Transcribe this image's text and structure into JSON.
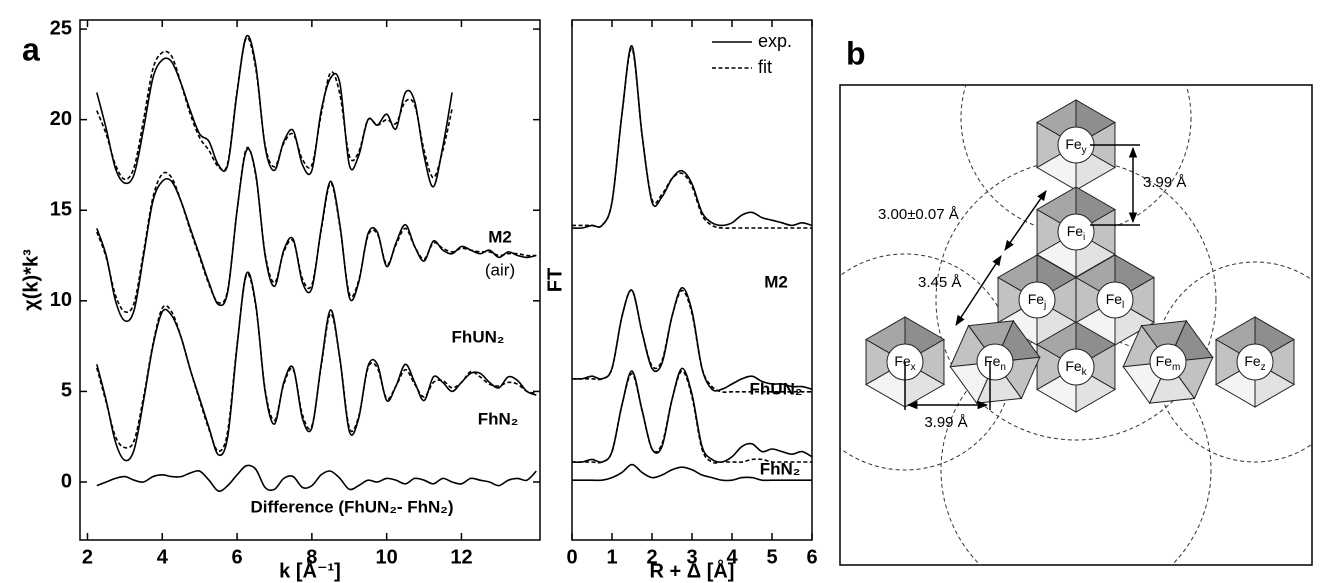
{
  "chart_data": [
    {
      "type": "line",
      "label": "a",
      "x_label": "k [Å⁻¹]",
      "y_label": "χ(k)*k³",
      "xlim": [
        1.8,
        14.1
      ],
      "xticks": [
        2,
        4,
        6,
        8,
        10,
        12
      ],
      "ylim": [
        -3.2,
        25.5
      ],
      "yticks": [
        0,
        5,
        10,
        15,
        20,
        25
      ],
      "annotations": [
        "M2",
        "(air)",
        "FhUN₂",
        "FhN₂",
        "Difference (FhUN₂- FhN₂)"
      ],
      "x": [
        2.25,
        2.5,
        2.75,
        3.0,
        3.25,
        3.5,
        3.75,
        4.0,
        4.25,
        4.5,
        4.75,
        5.0,
        5.25,
        5.5,
        5.75,
        6.0,
        6.25,
        6.5,
        6.75,
        7.0,
        7.25,
        7.5,
        7.75,
        8.0,
        8.25,
        8.5,
        8.75,
        9.0,
        9.25,
        9.5,
        9.75,
        10.0,
        10.25,
        10.5,
        10.75,
        11.0,
        11.25,
        11.5,
        11.75,
        12.0,
        12.25,
        12.5,
        12.75,
        13.0,
        13.25,
        13.5,
        13.75,
        14.0
      ],
      "series": [
        {
          "color": "#000000",
          "style": "solid",
          "values": [
            21.5,
            19.5,
            17.3,
            16.5,
            17.0,
            19.5,
            22.3,
            23.3,
            23.2,
            22.0,
            20.5,
            19.2,
            18.8,
            17.5,
            17.5,
            21.5,
            24.6,
            23.0,
            18.5,
            17.2,
            18.8,
            19.4,
            17.5,
            17.2,
            20.5,
            22.3,
            22.0,
            17.5,
            18.0,
            20.0,
            19.7,
            20.3,
            19.5,
            21.5,
            21.0,
            18.0,
            16.3,
            18.5,
            21.5,
            null,
            null,
            null,
            null,
            null,
            null,
            null,
            null,
            null
          ]
        },
        {
          "color": "#000000",
          "style": "dashed",
          "values": [
            20.5,
            19.2,
            17.5,
            16.7,
            17.4,
            20.0,
            22.8,
            23.7,
            23.5,
            22.0,
            20.3,
            19.0,
            18.3,
            17.4,
            17.6,
            21.6,
            24.5,
            22.8,
            18.6,
            17.4,
            18.7,
            19.2,
            17.8,
            17.5,
            20.3,
            22.6,
            21.4,
            18.0,
            18.2,
            20.0,
            19.7,
            20.0,
            19.8,
            21.0,
            20.8,
            18.3,
            16.8,
            18.3,
            20.6,
            null,
            null,
            null,
            null,
            null,
            null,
            null,
            null,
            null
          ]
        },
        {
          "color": "#000000",
          "style": "solid",
          "values": [
            14.0,
            12.5,
            10.0,
            8.9,
            9.5,
            12.5,
            15.5,
            16.6,
            16.6,
            15.5,
            14.0,
            12.5,
            11.0,
            9.8,
            10.5,
            15.0,
            18.3,
            17.0,
            12.5,
            10.8,
            12.8,
            13.4,
            11.0,
            10.7,
            14.0,
            16.6,
            14.2,
            10.2,
            11.0,
            13.7,
            13.8,
            11.9,
            13.2,
            14.2,
            13.0,
            12.2,
            13.3,
            12.8,
            12.6,
            13.0,
            12.8,
            12.6,
            12.8,
            12.4,
            12.7,
            12.5,
            12.4,
            12.5
          ]
        },
        {
          "color": "#000000",
          "style": "dashed",
          "values": [
            13.8,
            12.4,
            10.3,
            9.4,
            9.9,
            12.7,
            15.7,
            17.0,
            16.8,
            15.5,
            13.9,
            12.4,
            10.9,
            9.9,
            10.6,
            15.0,
            18.4,
            16.9,
            12.6,
            11.0,
            12.7,
            13.3,
            11.2,
            10.9,
            13.9,
            16.5,
            14.1,
            10.4,
            11.1,
            13.6,
            13.7,
            12.0,
            13.1,
            14.0,
            13.0,
            12.3,
            13.2,
            12.9,
            12.7,
            12.9,
            12.8,
            12.7,
            12.7,
            12.5,
            12.6,
            12.6,
            12.5,
            12.5
          ]
        },
        {
          "color": "#000000",
          "style": "solid",
          "values": [
            6.5,
            4.5,
            2.2,
            1.2,
            1.8,
            4.5,
            7.5,
            9.4,
            9.2,
            8.0,
            6.2,
            4.6,
            3.0,
            1.5,
            2.5,
            7.5,
            11.5,
            9.8,
            5.0,
            3.2,
            5.5,
            6.3,
            3.5,
            3.0,
            6.5,
            9.5,
            6.8,
            2.8,
            3.5,
            6.4,
            6.5,
            4.5,
            5.3,
            6.5,
            5.5,
            4.5,
            5.8,
            5.5,
            5.0,
            5.5,
            6.0,
            6.0,
            5.5,
            5.2,
            5.8,
            5.6,
            5.0,
            4.8
          ]
        },
        {
          "color": "#000000",
          "style": "dashed",
          "values": [
            6.3,
            4.4,
            2.5,
            1.9,
            2.3,
            4.7,
            7.6,
            9.6,
            9.4,
            8.0,
            6.2,
            4.5,
            2.9,
            1.7,
            2.8,
            7.6,
            11.4,
            9.7,
            5.1,
            3.4,
            5.4,
            6.2,
            3.7,
            3.1,
            6.4,
            9.3,
            6.8,
            3.0,
            3.6,
            6.3,
            6.3,
            4.6,
            5.3,
            6.2,
            5.4,
            4.7,
            5.5,
            5.6,
            5.2,
            5.5,
            6.1,
            5.8,
            5.4,
            5.3,
            5.5,
            5.4,
            5.0,
            4.9
          ]
        },
        {
          "color": "#000000",
          "style": "solid",
          "values": [
            -0.2,
            0.0,
            0.2,
            0.3,
            0.1,
            0.0,
            0.3,
            0.4,
            0.3,
            0.3,
            0.5,
            0.6,
            0.1,
            -0.5,
            -0.2,
            0.4,
            0.9,
            0.7,
            -0.3,
            -0.4,
            0.2,
            0.3,
            -0.3,
            -0.2,
            0.4,
            0.6,
            0.2,
            -0.4,
            -0.2,
            0.1,
            0.0,
            0.2,
            0.1,
            -0.1,
            0.2,
            0.1,
            -0.1,
            0.2,
            0.0,
            -0.1,
            0.2,
            0.1,
            0.0,
            -0.2,
            0.1,
            0.2,
            0.1,
            0.6
          ]
        }
      ]
    },
    {
      "type": "line",
      "x_label": "R + Δ [Å]",
      "y_label": "FT",
      "xlim": [
        0,
        6
      ],
      "xticks": [
        0,
        1,
        2,
        3,
        4,
        5,
        6
      ],
      "ylim": [
        0,
        10
      ],
      "annotations": [
        "M2",
        "FhUN₂",
        "FhN₂"
      ],
      "x": [
        0,
        0.25,
        0.5,
        0.75,
        1.0,
        1.25,
        1.5,
        1.75,
        2.0,
        2.25,
        2.5,
        2.75,
        3.0,
        3.25,
        3.5,
        3.75,
        4.0,
        4.25,
        4.5,
        4.75,
        5.0,
        5.25,
        5.5,
        5.75,
        6.0
      ],
      "series": [
        {
          "name": "exp.",
          "color": "#000000",
          "style": "solid",
          "values": [
            6.0,
            6.0,
            6.05,
            6.05,
            6.5,
            8.2,
            9.5,
            7.8,
            6.5,
            6.6,
            6.95,
            7.1,
            6.85,
            6.3,
            6.1,
            6.05,
            6.1,
            6.25,
            6.3,
            6.2,
            6.15,
            6.1,
            6.05,
            6.1,
            6.05
          ]
        },
        {
          "name": "fit",
          "color": "#000000",
          "style": "dashed",
          "values": [
            6.05,
            6.05,
            6.05,
            6.05,
            6.5,
            8.2,
            9.45,
            7.8,
            6.55,
            6.65,
            6.95,
            7.05,
            6.8,
            6.25,
            6.05,
            6.0,
            6.0,
            6.0,
            6.0,
            6.0,
            6.0,
            6.0,
            6.0,
            6.0,
            6.0
          ]
        },
        {
          "color": "#000000",
          "style": "solid",
          "values": [
            3.1,
            3.1,
            3.15,
            3.1,
            3.3,
            4.3,
            4.8,
            4.0,
            3.3,
            3.4,
            4.3,
            4.85,
            4.4,
            3.3,
            2.9,
            2.9,
            3.0,
            3.1,
            3.15,
            3.05,
            3.0,
            3.0,
            2.95,
            2.95,
            2.9
          ]
        },
        {
          "color": "#000000",
          "style": "dashed",
          "values": [
            3.1,
            3.1,
            3.1,
            3.1,
            3.3,
            4.3,
            4.8,
            4.0,
            3.35,
            3.45,
            4.3,
            4.8,
            4.35,
            3.3,
            2.95,
            2.85,
            2.85,
            2.85,
            2.85,
            2.85,
            2.85,
            2.85,
            2.85,
            2.85,
            2.85
          ]
        },
        {
          "color": "#000000",
          "style": "solid",
          "values": [
            1.5,
            1.5,
            1.55,
            1.5,
            1.7,
            2.6,
            3.25,
            2.5,
            1.75,
            1.8,
            2.7,
            3.3,
            2.8,
            1.8,
            1.55,
            1.5,
            1.6,
            1.8,
            1.85,
            1.7,
            1.75,
            1.7,
            1.65,
            1.7,
            1.6
          ]
        },
        {
          "color": "#000000",
          "style": "dashed",
          "values": [
            1.5,
            1.5,
            1.5,
            1.5,
            1.7,
            2.6,
            3.2,
            2.5,
            1.75,
            1.85,
            2.7,
            3.25,
            2.75,
            1.75,
            1.5,
            1.5,
            1.5,
            1.5,
            1.55,
            1.55,
            1.5,
            1.5,
            1.5,
            1.5,
            1.5
          ]
        },
        {
          "color": "#000000",
          "style": "solid",
          "values": [
            1.15,
            1.15,
            1.15,
            1.15,
            1.2,
            1.3,
            1.45,
            1.3,
            1.2,
            1.25,
            1.35,
            1.4,
            1.35,
            1.25,
            1.2,
            1.15,
            1.15,
            1.2,
            1.2,
            1.15,
            1.15,
            1.15,
            1.15,
            1.15,
            1.15
          ]
        }
      ]
    }
  ],
  "diagram": {
    "label": "b",
    "nodes": [
      {
        "main": "Fe",
        "sub": "y"
      },
      {
        "main": "Fe",
        "sub": "i"
      },
      {
        "main": "Fe",
        "sub": "j"
      },
      {
        "main": "Fe",
        "sub": "l"
      },
      {
        "main": "Fe",
        "sub": "k"
      },
      {
        "main": "Fe",
        "sub": "x"
      },
      {
        "main": "Fe",
        "sub": "n"
      },
      {
        "main": "Fe",
        "sub": "m"
      },
      {
        "main": "Fe",
        "sub": "z"
      }
    ],
    "distances": [
      "3.99 Å",
      "3.00±0.07 Å",
      "3.45 Å",
      "3.99 Å"
    ]
  }
}
